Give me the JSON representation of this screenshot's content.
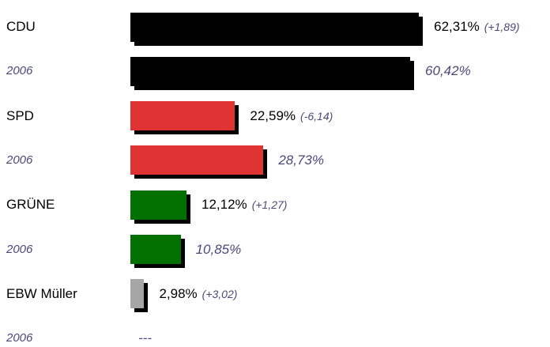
{
  "chart_data": {
    "type": "bar",
    "orientation": "horizontal",
    "categories": [
      "CDU",
      "2006",
      "SPD",
      "2006",
      "GRÜNE",
      "2006",
      "EBW Müller",
      "2006"
    ],
    "values": [
      62.31,
      60.42,
      22.59,
      28.73,
      12.12,
      10.85,
      2.98,
      null
    ],
    "value_labels": [
      "62,31%",
      "60,42%",
      "22,59%",
      "28,73%",
      "12,12%",
      "10,85%",
      "2,98%",
      "---"
    ],
    "change_labels": [
      "(+1,89)",
      null,
      "(-6,14)",
      null,
      "(+1,27)",
      null,
      "(+3,02)",
      null
    ],
    "colors": [
      "#000000",
      "#000000",
      "#e03333",
      "#e03333",
      "#007000",
      "#007000",
      "#a6a6a6",
      null
    ],
    "xlim": [
      0,
      100
    ]
  }
}
